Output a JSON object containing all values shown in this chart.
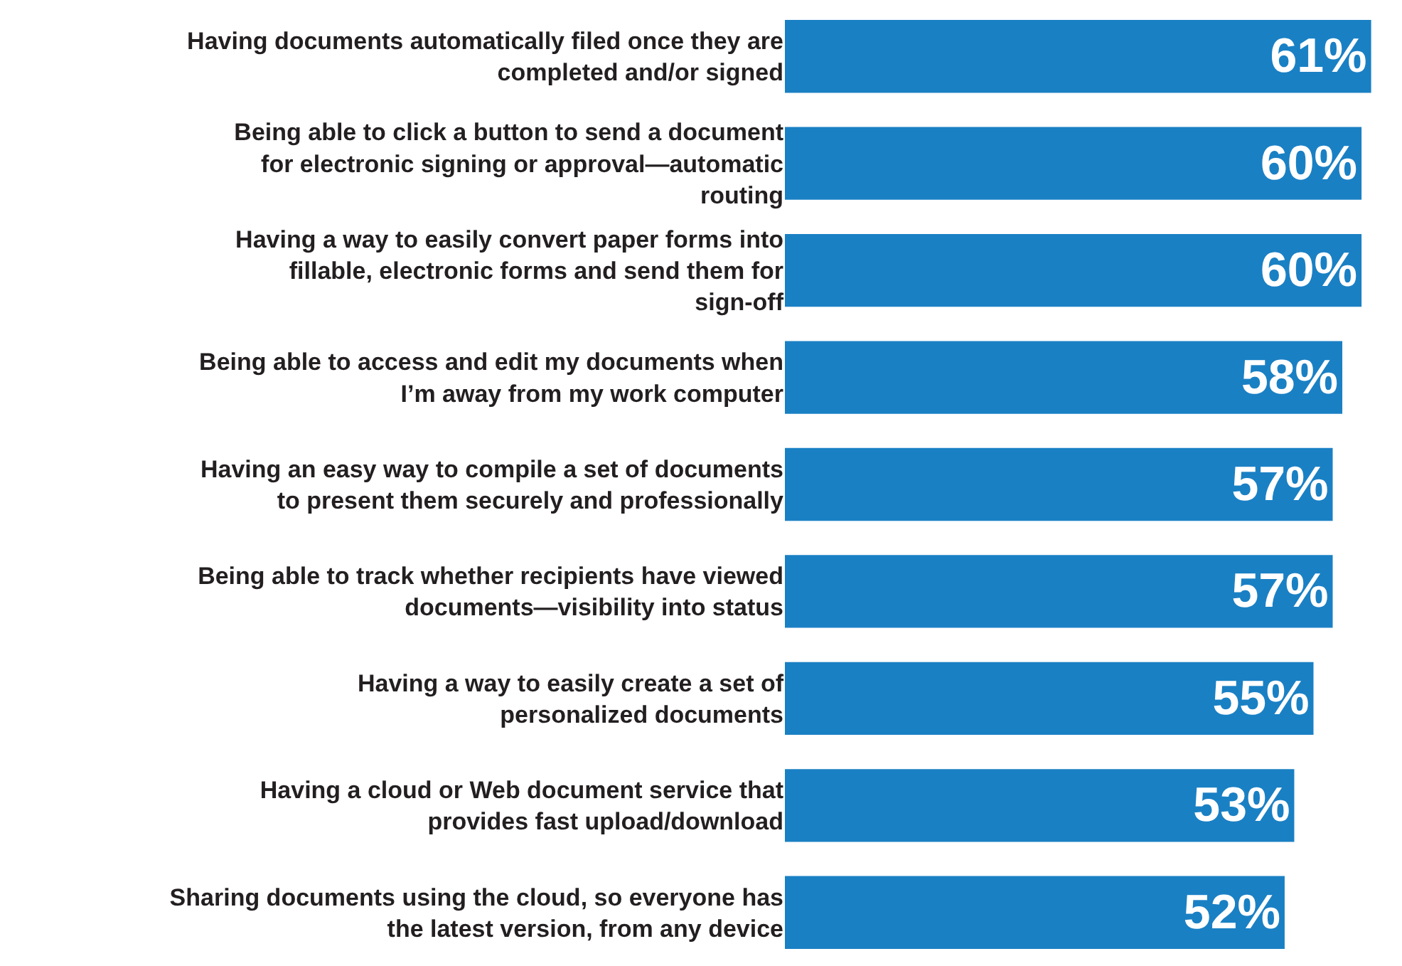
{
  "chart_data": {
    "type": "bar",
    "orientation": "horizontal",
    "data_labels": true,
    "tick_labels": "y",
    "categories": [
      "Having documents automatically filed once they are completed and/or signed",
      "Being able to click a button to send a document for electronic signing or approval—automatic routing",
      "Having a way to easily convert paper forms into fillable, electronic forms and send them for sign-off",
      "Being able to access and edit my documents when I’m away from my work computer",
      "Having an easy way to compile a set of documents to present them securely and professionally",
      "Being able to track whether recipients have viewed documents—visibility into status",
      "Having a way to easily create a set of personalized documents",
      "Having a cloud or Web document service that provides fast upload/download",
      "Sharing documents using the cloud, so everyone has the latest version, from any device"
    ],
    "values": [
      61,
      60,
      60,
      58,
      57,
      57,
      55,
      53,
      52
    ],
    "value_labels": [
      "61%",
      "60%",
      "60%",
      "58%",
      "57%",
      "57%",
      "55%",
      "53%",
      "52%"
    ],
    "color": "#1a80c4"
  }
}
